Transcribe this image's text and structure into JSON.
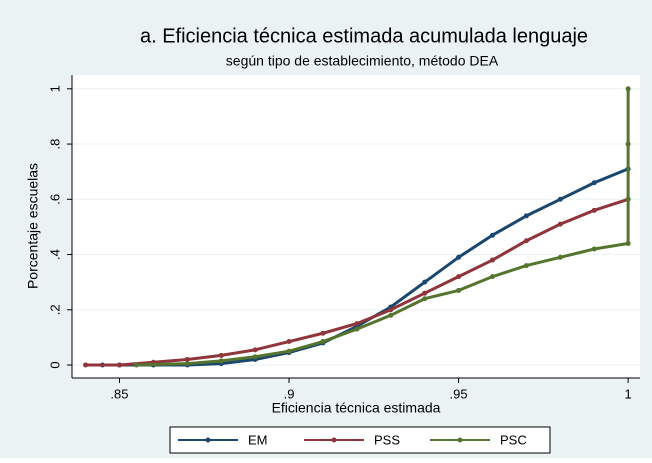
{
  "chart_data": {
    "type": "line",
    "title": "a. Eficiencia técnica estimada acumulada lenguaje",
    "subtitle": "según tipo de establecimiento, método DEA",
    "x_label": "Eficiencia técnica estimada",
    "y_label": "Porcentaje escuelas",
    "xlim": [
      0.836,
      1.0035
    ],
    "ylim": [
      -0.047,
      1.05
    ],
    "xticks": [
      {
        "value": 0.85,
        "label": ".85"
      },
      {
        "value": 0.9,
        "label": ".9"
      },
      {
        "value": 0.95,
        "label": ".95"
      },
      1
    ],
    "yticks": [
      0,
      {
        "value": 0.2,
        "label": ".2"
      },
      {
        "value": 0.4,
        "label": ".4"
      },
      {
        "value": 0.6,
        "label": ".6"
      },
      {
        "value": 0.8,
        "label": ".8"
      },
      1
    ],
    "grid": true,
    "legend": "bottom",
    "series": [
      {
        "name": "EM",
        "color": "#1a476f",
        "x": [
          0.845,
          0.85,
          0.86,
          0.87,
          0.88,
          0.89,
          0.9,
          0.91,
          0.92,
          0.93,
          0.94,
          0.95,
          0.96,
          0.97,
          0.98,
          0.99,
          1.0
        ],
        "values": [
          0,
          0,
          0,
          0,
          0.005,
          0.02,
          0.045,
          0.08,
          0.14,
          0.21,
          0.3,
          0.39,
          0.47,
          0.54,
          0.6,
          0.66,
          0.71
        ]
      },
      {
        "name": "PSS",
        "color": "#90353b",
        "x": [
          0.84,
          0.85,
          0.86,
          0.87,
          0.88,
          0.89,
          0.9,
          0.91,
          0.92,
          0.93,
          0.94,
          0.95,
          0.96,
          0.97,
          0.98,
          0.99,
          1.0
        ],
        "values": [
          0,
          0,
          0.01,
          0.02,
          0.035,
          0.055,
          0.085,
          0.115,
          0.15,
          0.2,
          0.26,
          0.32,
          0.38,
          0.45,
          0.51,
          0.56,
          0.6
        ]
      },
      {
        "name": "PSC",
        "color": "#55752f",
        "x": [
          0.855,
          0.87,
          0.88,
          0.89,
          0.9,
          0.91,
          0.92,
          0.93,
          0.94,
          0.95,
          0.96,
          0.97,
          0.98,
          0.99,
          1.0,
          1.0,
          1.0,
          1.0
        ],
        "values": [
          0,
          0.005,
          0.015,
          0.03,
          0.05,
          0.085,
          0.13,
          0.18,
          0.24,
          0.27,
          0.32,
          0.36,
          0.39,
          0.42,
          0.44,
          0.6,
          0.8,
          1.0
        ]
      }
    ]
  }
}
